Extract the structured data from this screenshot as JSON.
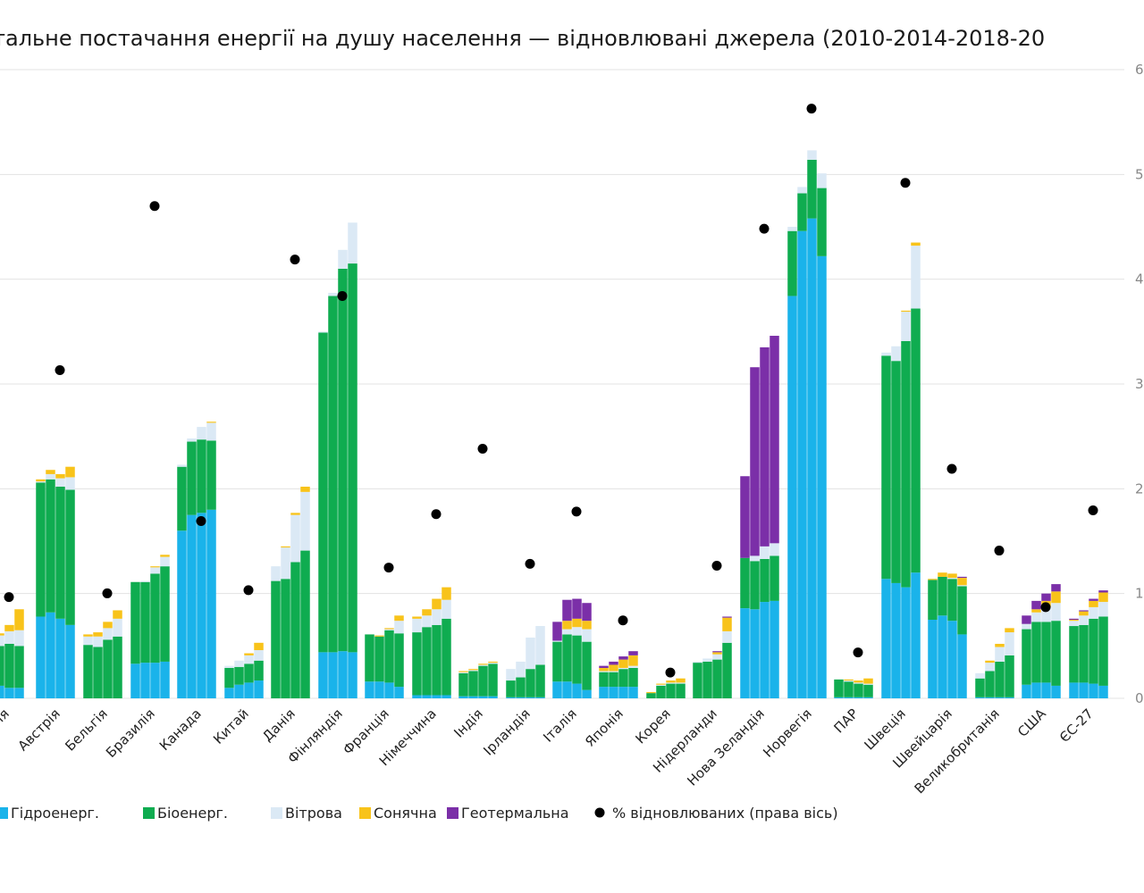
{
  "chart_data": {
    "type": "bar",
    "stacked": true,
    "title": "тальне постачання енергії на душу населення — відновлювані джерела (2010-2014-2018-20",
    "years_per_category": 4,
    "y2_ticks": [
      "0",
      "1",
      "2",
      "3",
      "4",
      "5",
      "6"
    ],
    "y2lim": [
      0,
      6
    ],
    "y1lim": [
      0,
      100
    ],
    "grid": true,
    "legend_position": "bottom-left",
    "categories": [
      "ія",
      "Австрія",
      "Бельгія",
      "Бразилія",
      "Канада",
      "Китай",
      "Данія",
      "Фінляндія",
      "Франція",
      "Німеччина",
      "Індія",
      "Ірландія",
      "Італія",
      "Японія",
      "Корея",
      "Нідерланди",
      "Нова Зеландія",
      "Норвегія",
      "ПАР",
      "Швеція",
      "Швейцарія",
      "Великобританія",
      "США",
      "ЄС-27"
    ],
    "series": [
      {
        "name": "Гідроенерг.",
        "color": "#1ab3ea",
        "values": [
          [
            12,
            12,
            10,
            10
          ],
          [
            78,
            82,
            76,
            70
          ],
          [
            0,
            0,
            0,
            0
          ],
          [
            33,
            34,
            34,
            35
          ],
          [
            160,
            175,
            177,
            180
          ],
          [
            10,
            13,
            15,
            17
          ],
          [
            0,
            0,
            0,
            0
          ],
          [
            44,
            44,
            45,
            44
          ],
          [
            16,
            16,
            15,
            11
          ],
          [
            3,
            3,
            3,
            3
          ],
          [
            2,
            2,
            2,
            2
          ],
          [
            1,
            1,
            1,
            1
          ],
          [
            16,
            16,
            14,
            8
          ],
          [
            11,
            11,
            11,
            11
          ],
          [
            0,
            0,
            0,
            0
          ],
          [
            0,
            0,
            0,
            0
          ],
          [
            86,
            85,
            92,
            93
          ],
          [
            384,
            446,
            458,
            422
          ],
          [
            1,
            1,
            1,
            1
          ],
          [
            114,
            110,
            106,
            120
          ],
          [
            75,
            79,
            74,
            61
          ],
          [
            1,
            1,
            1,
            1
          ],
          [
            13,
            15,
            15,
            12
          ],
          [
            15,
            15,
            14,
            12
          ]
        ]
      },
      {
        "name": "Біоенерг.",
        "color": "#0fac50",
        "values": [
          [
            40,
            38,
            42,
            40
          ],
          [
            128,
            127,
            126,
            129
          ],
          [
            51,
            49,
            56,
            59
          ],
          [
            78,
            77,
            85,
            91
          ],
          [
            61,
            70,
            70,
            66
          ],
          [
            19,
            17,
            18,
            19
          ],
          [
            112,
            114,
            130,
            141
          ],
          [
            305,
            340,
            365,
            371
          ],
          [
            45,
            43,
            50,
            51
          ],
          [
            60,
            65,
            67,
            73
          ],
          [
            22,
            24,
            29,
            31
          ],
          [
            16,
            19,
            27,
            31
          ],
          [
            38,
            45,
            46,
            46
          ],
          [
            14,
            14,
            17,
            18
          ],
          [
            5,
            12,
            14,
            14
          ],
          [
            34,
            35,
            37,
            53
          ],
          [
            48,
            46,
            41,
            43
          ],
          [
            62,
            36,
            56,
            65
          ],
          [
            17,
            15,
            13,
            12
          ],
          [
            213,
            212,
            235,
            252
          ],
          [
            38,
            37,
            40,
            46
          ],
          [
            18,
            25,
            34,
            40
          ],
          [
            53,
            58,
            58,
            62
          ],
          [
            54,
            55,
            62,
            66
          ]
        ]
      },
      {
        "name": "Вітрова",
        "color": "#dbe9f5",
        "values": [
          [
            10,
            10,
            12,
            15
          ],
          [
            1,
            5,
            8,
            12
          ],
          [
            8,
            10,
            11,
            17
          ],
          [
            0,
            1,
            6,
            9
          ],
          [
            2,
            3,
            12,
            17
          ],
          [
            2,
            6,
            8,
            10
          ],
          [
            14,
            30,
            45,
            56
          ],
          [
            1,
            3,
            18,
            39
          ],
          [
            0,
            0,
            1,
            12
          ],
          [
            13,
            11,
            15,
            18
          ],
          [
            1,
            1,
            1,
            1
          ],
          [
            11,
            15,
            30,
            37
          ],
          [
            1,
            5,
            8,
            12
          ],
          [
            1,
            1,
            1,
            2
          ],
          [
            0,
            1,
            1,
            1
          ],
          [
            1,
            3,
            5,
            11
          ],
          [
            0,
            5,
            12,
            12
          ],
          [
            4,
            6,
            9,
            14
          ],
          [
            0,
            1,
            1,
            1
          ],
          [
            3,
            14,
            28,
            60
          ],
          [
            0,
            0,
            1,
            1
          ],
          [
            5,
            8,
            14,
            22
          ],
          [
            5,
            9,
            14,
            17
          ],
          [
            5,
            9,
            11,
            14
          ]
        ]
      },
      {
        "name": "Сонячна",
        "color": "#f8c31a",
        "values": [
          [
            0,
            2,
            6,
            20
          ],
          [
            2,
            4,
            4,
            10
          ],
          [
            2,
            4,
            6,
            8
          ],
          [
            0,
            0,
            1,
            2
          ],
          [
            0,
            0,
            0,
            1
          ],
          [
            0,
            0,
            2,
            7
          ],
          [
            0,
            1,
            2,
            5
          ],
          [
            0,
            0,
            0,
            0
          ],
          [
            0,
            1,
            1,
            5
          ],
          [
            2,
            6,
            10,
            12
          ],
          [
            1,
            1,
            1,
            1
          ],
          [
            0,
            0,
            0,
            0
          ],
          [
            0,
            8,
            8,
            8
          ],
          [
            3,
            6,
            8,
            10
          ],
          [
            1,
            1,
            2,
            4
          ],
          [
            0,
            0,
            2,
            13
          ],
          [
            0,
            0,
            0,
            0
          ],
          [
            0,
            0,
            0,
            0
          ],
          [
            0,
            1,
            2,
            5
          ],
          [
            0,
            0,
            1,
            3
          ],
          [
            1,
            4,
            4,
            7
          ],
          [
            0,
            2,
            3,
            4
          ],
          [
            0,
            3,
            6,
            11
          ],
          [
            1,
            4,
            6,
            9
          ]
        ]
      },
      {
        "name": "Геотермальна",
        "color": "#7b2fa8",
        "values": [
          [
            0,
            0,
            0,
            0
          ],
          [
            0,
            0,
            0,
            0
          ],
          [
            0,
            0,
            0,
            0
          ],
          [
            0,
            0,
            0,
            0
          ],
          [
            0,
            0,
            0,
            0
          ],
          [
            0,
            0,
            0,
            0
          ],
          [
            0,
            0,
            0,
            0
          ],
          [
            0,
            0,
            0,
            0
          ],
          [
            0,
            0,
            0,
            0
          ],
          [
            0,
            0,
            0,
            0
          ],
          [
            0,
            0,
            0,
            0
          ],
          [
            0,
            0,
            0,
            0
          ],
          [
            18,
            20,
            19,
            17
          ],
          [
            2,
            3,
            3,
            4
          ],
          [
            0,
            0,
            0,
            0
          ],
          [
            0,
            0,
            1,
            1
          ],
          [
            78,
            180,
            190,
            198
          ],
          [
            0,
            0,
            0,
            0
          ],
          [
            0,
            0,
            0,
            0
          ],
          [
            0,
            0,
            0,
            0
          ],
          [
            0,
            0,
            0,
            1
          ],
          [
            0,
            0,
            0,
            0
          ],
          [
            8,
            8,
            7,
            7
          ],
          [
            1,
            1,
            2,
            2
          ]
        ]
      }
    ],
    "pct_series": {
      "name": "% відновлюваних (права вісь)",
      "color": "#000000",
      "values": [
        16.1,
        52.2,
        16.7,
        78.3,
        28.2,
        17.2,
        69.8,
        64,
        20.8,
        29.3,
        39.7,
        21.4,
        29.7,
        12.4,
        4.1,
        21.1,
        74.7,
        93.8,
        7.3,
        82,
        36.5,
        23.5,
        14.5,
        29.9
      ]
    }
  }
}
